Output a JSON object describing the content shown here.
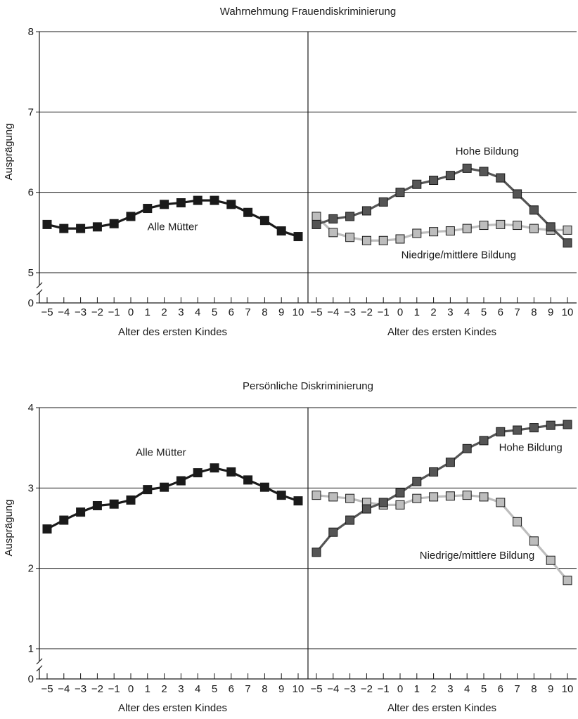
{
  "chart_data": [
    {
      "type": "line",
      "title": "Wahrnehmung Frauendiskriminierung",
      "ylabel": "Ausprägung",
      "ylim": [
        5,
        8
      ],
      "yticks": [
        "0",
        "5",
        "6",
        "7",
        "8"
      ],
      "axis_break": true,
      "grid": "horizontal",
      "panels": [
        {
          "xlabel": "Alter des ersten Kindes",
          "x": [
            -5,
            -4,
            -3,
            -2,
            -1,
            0,
            1,
            2,
            3,
            4,
            5,
            6,
            7,
            8,
            9,
            10
          ],
          "xticklabels": [
            "−5",
            "−4",
            "−3",
            "−2",
            "−1",
            "0",
            "1",
            "2",
            "3",
            "4",
            "5",
            "6",
            "7",
            "8",
            "9",
            "10"
          ],
          "series": [
            {
              "name": "Alle Mütter",
              "color": "#1a1a1a",
              "values": [
                5.6,
                5.55,
                5.55,
                5.57,
                5.61,
                5.7,
                5.8,
                5.85,
                5.87,
                5.9,
                5.9,
                5.85,
                5.75,
                5.65,
                5.52,
                5.45
              ],
              "label_at": [
                2.5,
                5.53
              ]
            }
          ]
        },
        {
          "xlabel": "Alter des ersten Kindes",
          "x": [
            -5,
            -4,
            -3,
            -2,
            -1,
            0,
            1,
            2,
            3,
            4,
            5,
            6,
            7,
            8,
            9,
            10
          ],
          "xticklabels": [
            "−5",
            "−4",
            "−3",
            "−2",
            "−1",
            "0",
            "1",
            "2",
            "3",
            "4",
            "5",
            "6",
            "7",
            "8",
            "9",
            "10"
          ],
          "series": [
            {
              "name": "Hohe Bildung",
              "color": "#555555",
              "values": [
                5.6,
                5.67,
                5.7,
                5.77,
                5.88,
                6.0,
                6.1,
                6.15,
                6.21,
                6.3,
                6.26,
                6.18,
                5.98,
                5.78,
                5.57,
                5.37
              ],
              "label_at": [
                5.2,
                6.47
              ]
            },
            {
              "name": "Niedrige/mittlere Bildung",
              "color": "#bdbdbd",
              "values": [
                5.7,
                5.5,
                5.44,
                5.4,
                5.4,
                5.42,
                5.49,
                5.51,
                5.52,
                5.55,
                5.59,
                5.6,
                5.59,
                5.55,
                5.53,
                5.53
              ],
              "label_at": [
                3.5,
                5.18
              ]
            }
          ]
        }
      ]
    },
    {
      "type": "line",
      "title": "Persönliche Diskriminierung",
      "ylabel": "Ausprägung",
      "ylim": [
        1,
        4
      ],
      "yticks": [
        "0",
        "1",
        "2",
        "3",
        "4"
      ],
      "axis_break": true,
      "grid": "horizontal",
      "panels": [
        {
          "xlabel": "Alter des ersten Kindes",
          "x": [
            -5,
            -4,
            -3,
            -2,
            -1,
            0,
            1,
            2,
            3,
            4,
            5,
            6,
            7,
            8,
            9,
            10
          ],
          "xticklabels": [
            "−5",
            "−4",
            "−3",
            "−2",
            "−1",
            "0",
            "1",
            "2",
            "3",
            "4",
            "5",
            "6",
            "7",
            "8",
            "9",
            "10"
          ],
          "series": [
            {
              "name": "Alle Mütter",
              "color": "#1a1a1a",
              "values": [
                2.49,
                2.6,
                2.7,
                2.78,
                2.8,
                2.85,
                2.98,
                3.01,
                3.09,
                3.19,
                3.25,
                3.2,
                3.1,
                3.01,
                2.91,
                2.84
              ],
              "label_at": [
                1.8,
                3.4
              ]
            }
          ]
        },
        {
          "xlabel": "Alter des ersten Kindes",
          "x": [
            -5,
            -4,
            -3,
            -2,
            -1,
            0,
            1,
            2,
            3,
            4,
            5,
            6,
            7,
            8,
            9,
            10
          ],
          "xticklabels": [
            "−5",
            "−4",
            "−3",
            "−2",
            "−1",
            "0",
            "1",
            "2",
            "3",
            "4",
            "5",
            "6",
            "7",
            "8",
            "9",
            "10"
          ],
          "series": [
            {
              "name": "Hohe Bildung",
              "color": "#555555",
              "values": [
                2.2,
                2.45,
                2.6,
                2.74,
                2.82,
                2.94,
                3.08,
                3.2,
                3.32,
                3.49,
                3.59,
                3.7,
                3.72,
                3.75,
                3.78,
                3.79
              ],
              "label_at": [
                7.8,
                3.46
              ]
            },
            {
              "name": "Niedrige/mittlere Bildung",
              "color": "#bdbdbd",
              "values": [
                2.91,
                2.89,
                2.87,
                2.82,
                2.79,
                2.79,
                2.87,
                2.89,
                2.9,
                2.91,
                2.89,
                2.82,
                2.58,
                2.34,
                2.1,
                1.85
              ],
              "label_at": [
                4.6,
                2.12
              ]
            }
          ]
        }
      ]
    }
  ]
}
